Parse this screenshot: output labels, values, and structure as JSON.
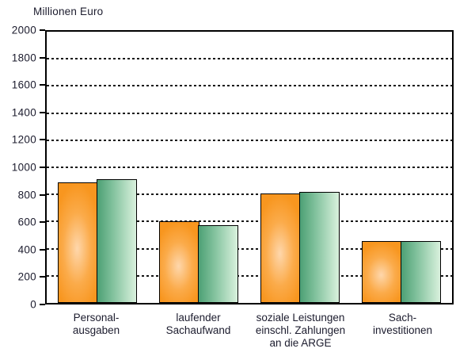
{
  "chart_data": {
    "type": "bar",
    "title": "Millionen Euro",
    "categories": [
      "Personal-\nausgaben",
      "laufender\nSachaufwand",
      "soziale Leistungen\neinschl. Zahlungen\nan die ARGE",
      "Sach-\ninvestitionen"
    ],
    "series": [
      {
        "name": "series-orange",
        "color": "#f8961f",
        "values": [
          890,
          600,
          805,
          455
        ]
      },
      {
        "name": "series-green",
        "color": "#4da075",
        "values": [
          915,
          575,
          820,
          455
        ]
      }
    ],
    "ylabel": "Millionen Euro",
    "xlabel": "",
    "ylim": [
      0,
      2000
    ],
    "ytick_step": 200,
    "ytick_labels": [
      "2000",
      "1800",
      "1600",
      "1400",
      "1200",
      "1000",
      "800",
      "600",
      "400",
      "200",
      "0"
    ],
    "grid": "dashed horizontal",
    "legend_position": "none",
    "colors": {
      "bar_border": "#000000",
      "axis_border": "#000000",
      "gridline": "#141414",
      "text": "#1c1c2e",
      "background": "#ffffff"
    }
  }
}
